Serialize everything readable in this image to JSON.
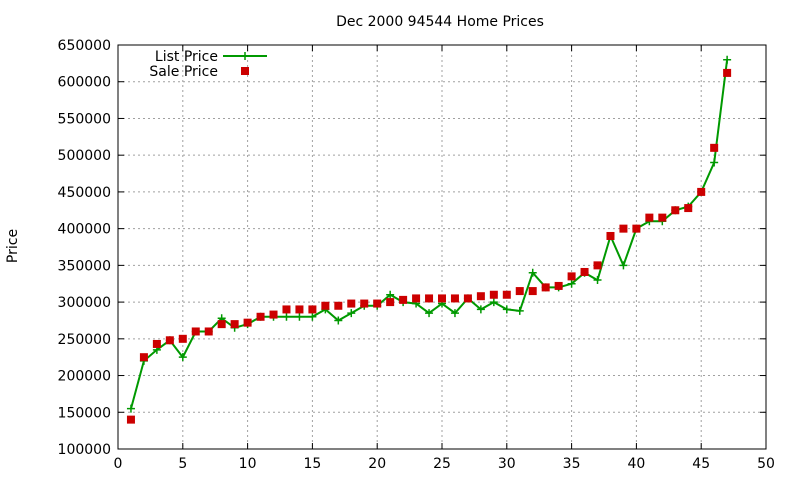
{
  "chart_data": {
    "type": "line",
    "title": "Dec 2000 94544 Home Prices",
    "xlabel": "",
    "ylabel": "Price",
    "xlim": [
      0,
      50
    ],
    "ylim": [
      100000,
      650000
    ],
    "xticks": [
      "0",
      "5",
      "10",
      "15",
      "20",
      "25",
      "30",
      "35",
      "40",
      "45",
      "50"
    ],
    "yticks": [
      "100000",
      "150000",
      "200000",
      "250000",
      "300000",
      "350000",
      "400000",
      "450000",
      "500000",
      "550000",
      "600000",
      "650000"
    ],
    "grid": true,
    "legend_position": "top-left",
    "series": [
      {
        "name": "List Price",
        "style": "line-with-plus",
        "color": "#009900",
        "x": [
          1,
          2,
          3,
          4,
          5,
          6,
          7,
          8,
          9,
          10,
          11,
          12,
          13,
          14,
          15,
          16,
          17,
          18,
          19,
          20,
          21,
          22,
          23,
          24,
          25,
          26,
          27,
          28,
          29,
          30,
          31,
          32,
          33,
          34,
          35,
          36,
          37,
          38,
          39,
          40,
          41,
          42,
          43,
          44,
          45,
          46,
          47
        ],
        "values": [
          155000,
          220000,
          235000,
          248000,
          225000,
          260000,
          260000,
          278000,
          265000,
          270000,
          280000,
          280000,
          280000,
          280000,
          280000,
          290000,
          275000,
          285000,
          295000,
          295000,
          310000,
          300000,
          298000,
          285000,
          298000,
          285000,
          305000,
          290000,
          300000,
          290000,
          288000,
          340000,
          320000,
          320000,
          325000,
          340000,
          330000,
          390000,
          350000,
          400000,
          410000,
          410000,
          425000,
          430000,
          450000,
          490000,
          630000
        ]
      },
      {
        "name": "Sale Price",
        "style": "points-square",
        "color": "#cc0000",
        "x": [
          1,
          2,
          3,
          4,
          5,
          6,
          7,
          8,
          9,
          10,
          11,
          12,
          13,
          14,
          15,
          16,
          17,
          18,
          19,
          20,
          21,
          22,
          23,
          24,
          25,
          26,
          27,
          28,
          29,
          30,
          31,
          32,
          33,
          34,
          35,
          36,
          37,
          38,
          39,
          40,
          41,
          42,
          43,
          44,
          45,
          46,
          47
        ],
        "values": [
          140000,
          225000,
          243000,
          248000,
          250000,
          260000,
          260000,
          270000,
          270000,
          272000,
          280000,
          283000,
          290000,
          290000,
          290000,
          295000,
          295000,
          298000,
          298000,
          298000,
          300000,
          303000,
          305000,
          305000,
          305000,
          305000,
          305000,
          308000,
          310000,
          310000,
          315000,
          315000,
          320000,
          322000,
          335000,
          341000,
          350000,
          390000,
          400000,
          400000,
          415000,
          415000,
          425000,
          428000,
          450000,
          510000,
          612000
        ]
      }
    ]
  }
}
